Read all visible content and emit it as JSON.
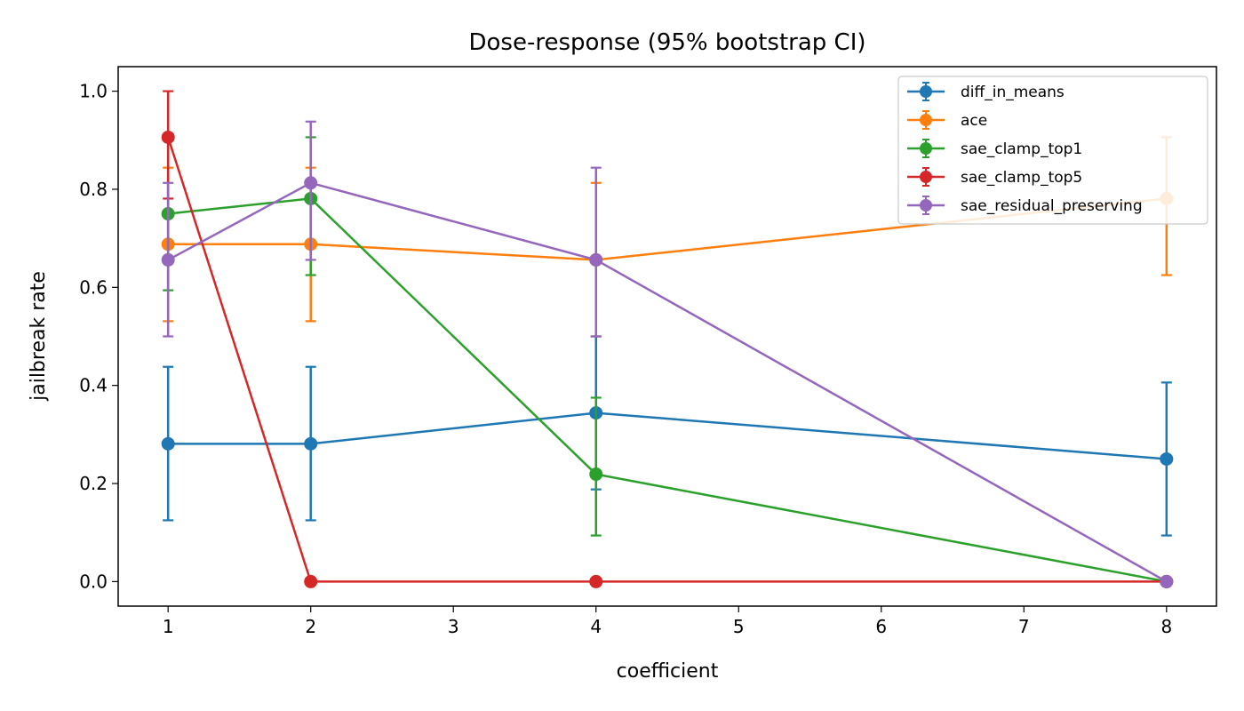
{
  "chart_data": {
    "type": "line",
    "title": "Dose-response (95% bootstrap CI)",
    "xlabel": "coefficient",
    "ylabel": "jailbreak rate",
    "xlim": [
      0.65,
      8.35
    ],
    "ylim": [
      -0.05,
      1.05
    ],
    "xticks": [
      1,
      2,
      3,
      4,
      5,
      6,
      7,
      8
    ],
    "yticks": [
      0.0,
      0.2,
      0.4,
      0.6,
      0.8,
      1.0
    ],
    "grid": false,
    "legend_position": "top-right",
    "series": [
      {
        "name": "diff_in_means",
        "color": "#1f77b4",
        "points": [
          {
            "x": 1,
            "y": 0.281,
            "lo": 0.125,
            "hi": 0.438
          },
          {
            "x": 2,
            "y": 0.281,
            "lo": 0.125,
            "hi": 0.438
          },
          {
            "x": 4,
            "y": 0.344,
            "lo": 0.188,
            "hi": 0.5
          },
          {
            "x": 8,
            "y": 0.25,
            "lo": 0.094,
            "hi": 0.406
          }
        ]
      },
      {
        "name": "ace",
        "color": "#ff7f0e",
        "points": [
          {
            "x": 1,
            "y": 0.688,
            "lo": 0.531,
            "hi": 0.844
          },
          {
            "x": 2,
            "y": 0.688,
            "lo": 0.531,
            "hi": 0.844
          },
          {
            "x": 4,
            "y": 0.656,
            "lo": 0.5,
            "hi": 0.813
          },
          {
            "x": 8,
            "y": 0.781,
            "lo": 0.625,
            "hi": 0.906
          }
        ]
      },
      {
        "name": "sae_clamp_top1",
        "color": "#2ca02c",
        "points": [
          {
            "x": 1,
            "y": 0.75,
            "lo": 0.594,
            "hi": 0.906
          },
          {
            "x": 2,
            "y": 0.781,
            "lo": 0.625,
            "hi": 0.906
          },
          {
            "x": 4,
            "y": 0.219,
            "lo": 0.094,
            "hi": 0.375
          },
          {
            "x": 8,
            "y": 0.0,
            "lo": 0.0,
            "hi": 0.0
          }
        ]
      },
      {
        "name": "sae_clamp_top5",
        "color": "#d62728",
        "points": [
          {
            "x": 1,
            "y": 0.906,
            "lo": 0.781,
            "hi": 1.0
          },
          {
            "x": 2,
            "y": 0.0,
            "lo": 0.0,
            "hi": 0.0
          },
          {
            "x": 4,
            "y": 0.0,
            "lo": 0.0,
            "hi": 0.0
          },
          {
            "x": 8,
            "y": 0.0,
            "lo": 0.0,
            "hi": 0.0
          }
        ]
      },
      {
        "name": "sae_residual_preserving",
        "color": "#9467bd",
        "points": [
          {
            "x": 1,
            "y": 0.656,
            "lo": 0.5,
            "hi": 0.813
          },
          {
            "x": 2,
            "y": 0.813,
            "lo": 0.656,
            "hi": 0.938
          },
          {
            "x": 4,
            "y": 0.656,
            "lo": 0.5,
            "hi": 0.844
          },
          {
            "x": 8,
            "y": 0.0,
            "lo": 0.0,
            "hi": 0.0
          }
        ]
      }
    ]
  }
}
